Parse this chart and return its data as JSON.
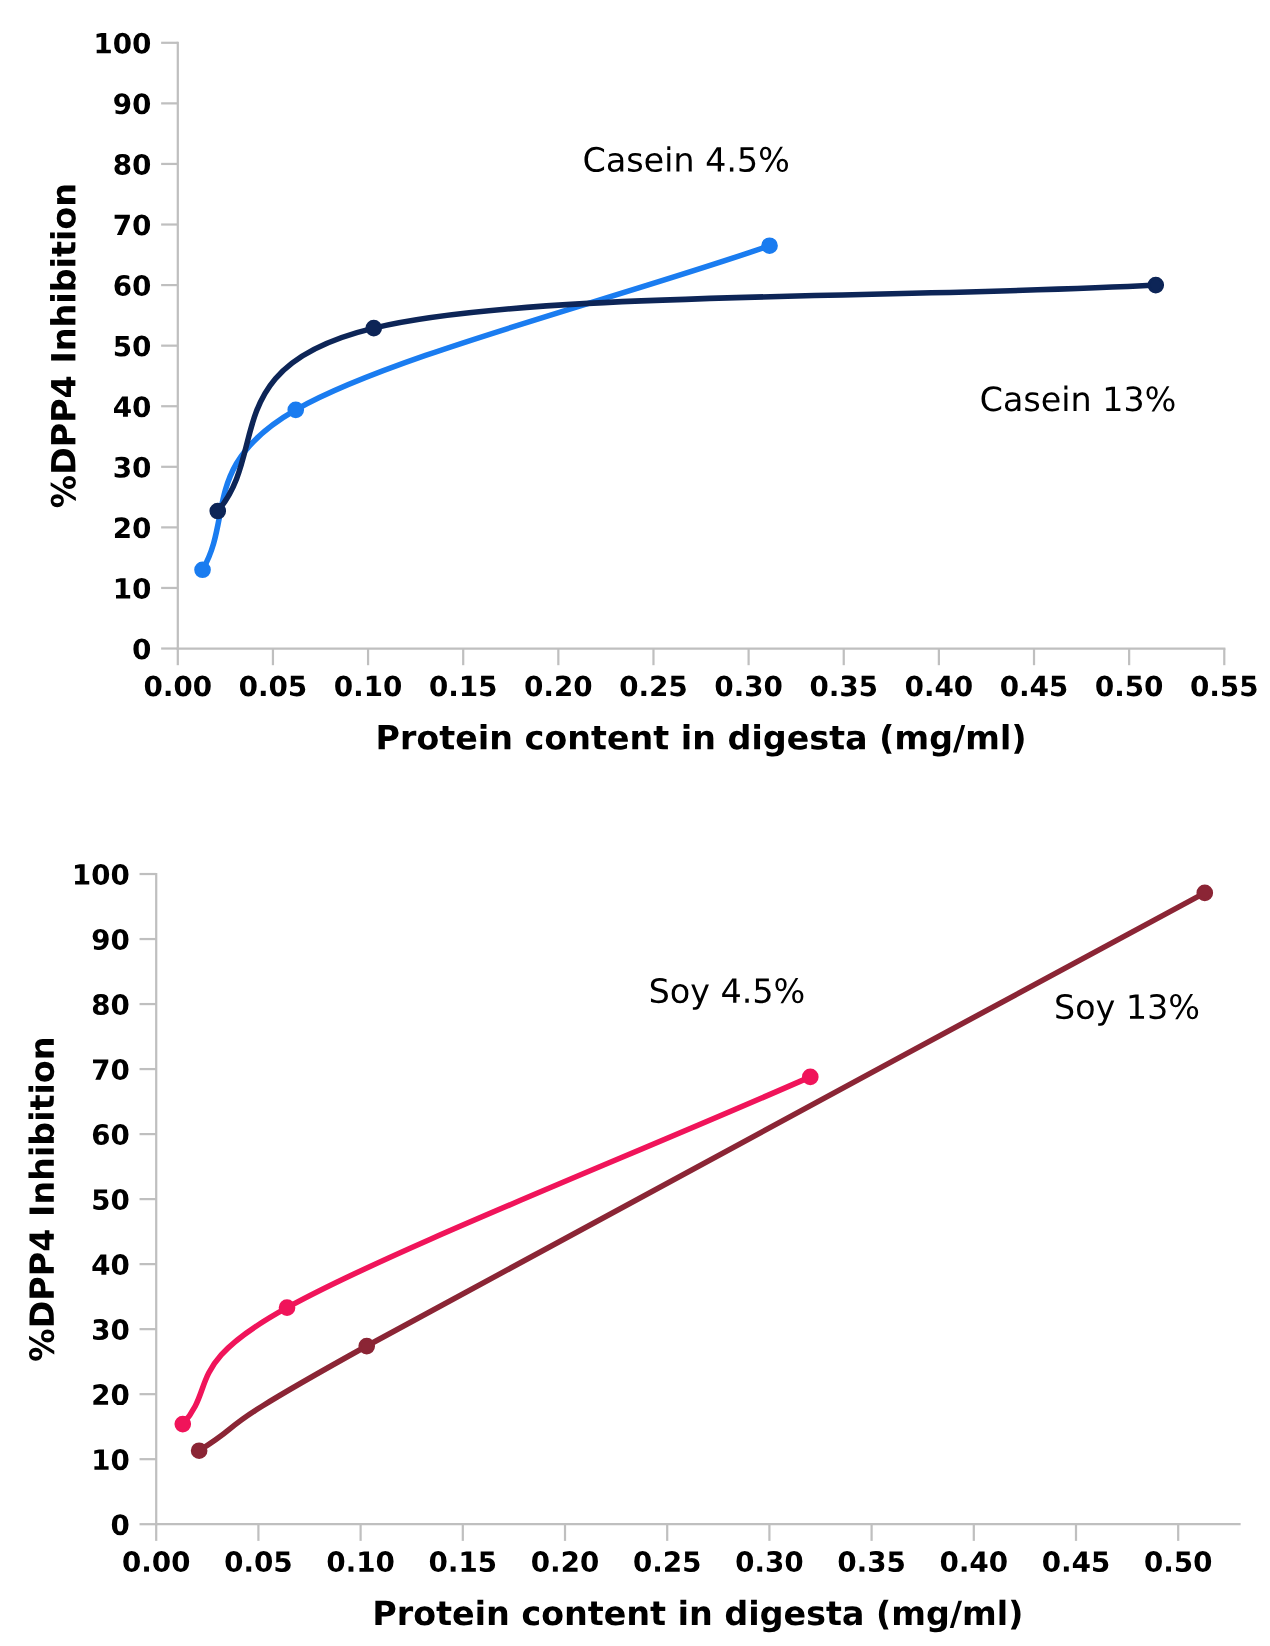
{
  "chart_data": [
    {
      "type": "line",
      "xlabel": "Protein content in digesta (mg/ml)",
      "ylabel": "%DPP4 Inhibition",
      "xlim": [
        0,
        0.55
      ],
      "xticks": [
        {
          "value": 0,
          "label": "0.00"
        },
        {
          "value": 0.05,
          "label": "0.05"
        },
        {
          "value": 0.1,
          "label": "0.10"
        },
        {
          "value": 0.15,
          "label": "0.15"
        },
        {
          "value": 0.2,
          "label": "0.20"
        },
        {
          "value": 0.25,
          "label": "0.25"
        },
        {
          "value": 0.3,
          "label": "0.30"
        },
        {
          "value": 0.35,
          "label": "0.35"
        },
        {
          "value": 0.4,
          "label": "0.40"
        },
        {
          "value": 0.45,
          "label": "0.45"
        },
        {
          "value": 0.5,
          "label": "0.50"
        },
        {
          "value": 0.55,
          "label": "0.55"
        }
      ],
      "ylim": [
        0,
        100
      ],
      "yticks": [
        0,
        10,
        20,
        30,
        40,
        50,
        60,
        70,
        80,
        90,
        100
      ],
      "marker": "circle",
      "line_style": "solid",
      "grid": false,
      "legend": false,
      "series": [
        {
          "name": "Casein 4.5%",
          "color": "#1a7cf0",
          "x": [
            0.013,
            0.062,
            0.311
          ],
          "values": [
            13,
            39.4,
            66.5
          ]
        },
        {
          "name": "Casein 13%",
          "color": "#0d2557",
          "x": [
            0.021,
            0.103,
            0.514
          ],
          "values": [
            22.7,
            52.9,
            60
          ]
        }
      ]
    },
    {
      "type": "line",
      "xlabel": "Protein content in digesta (mg/ml)",
      "ylabel": "%DPP4 Inhibition",
      "xlim": [
        0,
        0.53
      ],
      "xticks": [
        {
          "value": 0,
          "label": "0.00"
        },
        {
          "value": 0.05,
          "label": "0.05"
        },
        {
          "value": 0.1,
          "label": "0.10"
        },
        {
          "value": 0.15,
          "label": "0.15"
        },
        {
          "value": 0.2,
          "label": "0.20"
        },
        {
          "value": 0.25,
          "label": "0.25"
        },
        {
          "value": 0.3,
          "label": "0.30"
        },
        {
          "value": 0.35,
          "label": "0.35"
        },
        {
          "value": 0.4,
          "label": "0.40"
        },
        {
          "value": 0.45,
          "label": "0.45"
        },
        {
          "value": 0.5,
          "label": "0.50"
        }
      ],
      "ylim": [
        0,
        100
      ],
      "yticks": [
        0,
        10,
        20,
        30,
        40,
        50,
        60,
        70,
        80,
        90,
        100
      ],
      "marker": "circle",
      "line_style": "solid",
      "grid": false,
      "legend": false,
      "series": [
        {
          "name": "Soy 4.5%",
          "color": "#f0145a",
          "x": [
            0.013,
            0.064,
            0.32
          ],
          "values": [
            15.4,
            33.3,
            68.8
          ]
        },
        {
          "name": "Soy 13%",
          "color": "#8b2535",
          "x": [
            0.021,
            0.103,
            0.513
          ],
          "values": [
            11.3,
            27.4,
            97.1
          ]
        }
      ]
    }
  ]
}
